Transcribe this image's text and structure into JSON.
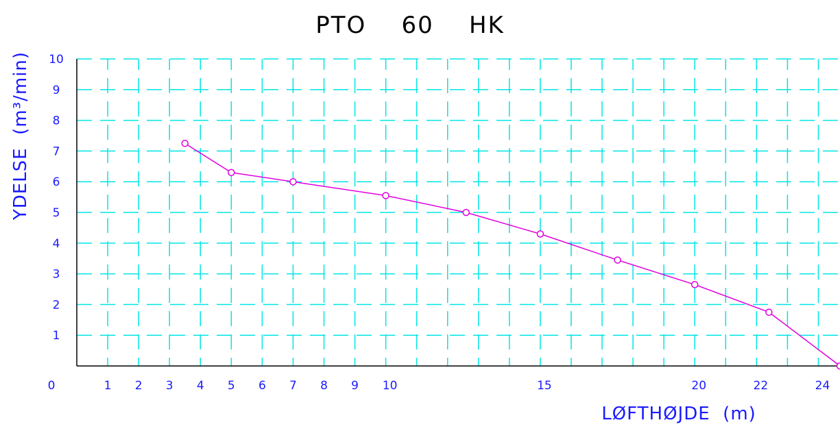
{
  "colors": {
    "grid": "#00e5e5",
    "axis": "#000000",
    "series": "#e000e0",
    "text": "#1a1aff",
    "title": "#000000"
  },
  "chart_data": {
    "type": "line",
    "title": "PTO    60    HK",
    "xlabel": "LØFTHØJDE  (m)",
    "ylabel": "YDELSE  (m³/min)",
    "xlim": [
      0,
      24.7
    ],
    "ylim": [
      0,
      10
    ],
    "x_ticks": [
      0,
      1,
      2,
      3,
      4,
      5,
      6,
      7,
      8,
      9,
      10,
      15,
      20,
      22,
      24
    ],
    "y_ticks": [
      1,
      2,
      3,
      4,
      5,
      6,
      7,
      8,
      9,
      10
    ],
    "grid": true,
    "grid_style": "dashed",
    "series": [
      {
        "marker": "circle",
        "x": [
          3.5,
          5.0,
          7.0,
          10.0,
          12.6,
          15.0,
          17.5,
          20.0,
          22.4,
          24.7
        ],
        "y": [
          7.25,
          6.3,
          6.0,
          5.55,
          5.0,
          4.3,
          3.45,
          2.65,
          1.75,
          0.0
        ]
      }
    ]
  }
}
